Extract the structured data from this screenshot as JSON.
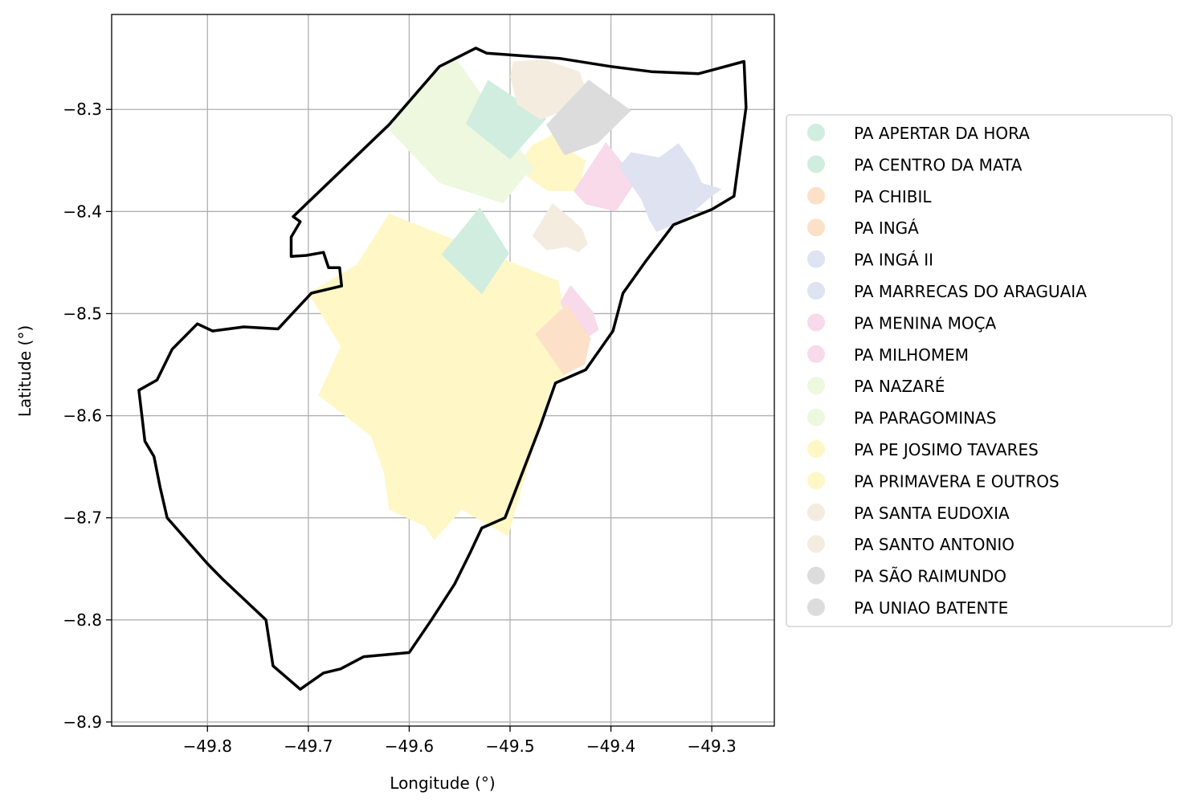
{
  "axes": {
    "xlabel": "Longitude (°)",
    "ylabel": "Latitude (°)",
    "xlim": [
      -49.895,
      -49.238
    ],
    "ylim": [
      -8.904,
      -8.207
    ],
    "xticks": [
      {
        "value": -49.8,
        "label": "−49.8"
      },
      {
        "value": -49.7,
        "label": "−49.7"
      },
      {
        "value": -49.6,
        "label": "−49.6"
      },
      {
        "value": -49.5,
        "label": "−49.5"
      },
      {
        "value": -49.4,
        "label": "−49.4"
      },
      {
        "value": -49.3,
        "label": "−49.3"
      }
    ],
    "yticks": [
      {
        "value": -8.3,
        "label": "−8.3"
      },
      {
        "value": -8.4,
        "label": "−8.4"
      },
      {
        "value": -8.5,
        "label": "−8.5"
      },
      {
        "value": -8.6,
        "label": "−8.6"
      },
      {
        "value": -8.7,
        "label": "−8.7"
      },
      {
        "value": -8.8,
        "label": "−8.8"
      },
      {
        "value": -8.9,
        "label": "−8.9"
      }
    ],
    "grid": true
  },
  "boundary": [
    [
      -49.534,
      -8.24
    ],
    [
      -49.523,
      -8.245
    ],
    [
      -49.451,
      -8.25
    ],
    [
      -49.4,
      -8.258
    ],
    [
      -49.36,
      -8.263
    ],
    [
      -49.313,
      -8.265
    ],
    [
      -49.268,
      -8.253
    ],
    [
      -49.266,
      -8.298
    ],
    [
      -49.278,
      -8.385
    ],
    [
      -49.3,
      -8.398
    ],
    [
      -49.338,
      -8.413
    ],
    [
      -49.365,
      -8.448
    ],
    [
      -49.388,
      -8.48
    ],
    [
      -49.398,
      -8.517
    ],
    [
      -49.425,
      -8.555
    ],
    [
      -49.455,
      -8.568
    ],
    [
      -49.47,
      -8.61
    ],
    [
      -49.505,
      -8.7
    ],
    [
      -49.528,
      -8.71
    ],
    [
      -49.54,
      -8.735
    ],
    [
      -49.555,
      -8.765
    ],
    [
      -49.578,
      -8.8
    ],
    [
      -49.6,
      -8.832
    ],
    [
      -49.645,
      -8.836
    ],
    [
      -49.668,
      -8.848
    ],
    [
      -49.685,
      -8.852
    ],
    [
      -49.708,
      -8.868
    ],
    [
      -49.735,
      -8.845
    ],
    [
      -49.742,
      -8.8
    ],
    [
      -49.785,
      -8.76
    ],
    [
      -49.8,
      -8.745
    ],
    [
      -49.84,
      -8.7
    ],
    [
      -49.847,
      -8.67
    ],
    [
      -49.853,
      -8.64
    ],
    [
      -49.862,
      -8.625
    ],
    [
      -49.868,
      -8.575
    ],
    [
      -49.85,
      -8.565
    ],
    [
      -49.835,
      -8.535
    ],
    [
      -49.81,
      -8.51
    ],
    [
      -49.795,
      -8.517
    ],
    [
      -49.764,
      -8.513
    ],
    [
      -49.73,
      -8.515
    ],
    [
      -49.713,
      -8.497
    ],
    [
      -49.697,
      -8.48
    ],
    [
      -49.667,
      -8.473
    ],
    [
      -49.669,
      -8.455
    ],
    [
      -49.68,
      -8.455
    ],
    [
      -49.685,
      -8.44
    ],
    [
      -49.702,
      -8.443
    ],
    [
      -49.717,
      -8.444
    ],
    [
      -49.717,
      -8.425
    ],
    [
      -49.708,
      -8.41
    ],
    [
      -49.715,
      -8.405
    ],
    [
      -49.62,
      -8.315
    ],
    [
      -49.57,
      -8.258
    ]
  ],
  "polygons": [
    {
      "color": "#fff7c6",
      "points": [
        [
          -49.62,
          -8.402
        ],
        [
          -49.652,
          -8.452
        ],
        [
          -49.7,
          -8.48
        ],
        [
          -49.668,
          -8.532
        ],
        [
          -49.69,
          -8.58
        ],
        [
          -49.638,
          -8.62
        ],
        [
          -49.625,
          -8.656
        ],
        [
          -49.62,
          -8.692
        ],
        [
          -49.585,
          -8.708
        ],
        [
          -49.575,
          -8.722
        ],
        [
          -49.548,
          -8.692
        ],
        [
          -49.502,
          -8.718
        ],
        [
          -49.47,
          -8.608
        ],
        [
          -49.458,
          -8.568
        ],
        [
          -49.428,
          -8.55
        ],
        [
          -49.442,
          -8.552
        ],
        [
          -49.47,
          -8.515
        ],
        [
          -49.458,
          -8.52
        ],
        [
          -49.448,
          -8.49
        ],
        [
          -49.452,
          -8.468
        ]
      ]
    },
    {
      "color": "#fff7c6",
      "points": [
        [
          -49.49,
          -8.35
        ],
        [
          -49.478,
          -8.335
        ],
        [
          -49.455,
          -8.323
        ],
        [
          -49.442,
          -8.34
        ],
        [
          -49.425,
          -8.35
        ],
        [
          -49.432,
          -8.38
        ],
        [
          -49.462,
          -8.38
        ],
        [
          -49.47,
          -8.375
        ],
        [
          -49.488,
          -8.362
        ]
      ]
    },
    {
      "color": "#edf8df",
      "points": [
        [
          -49.555,
          -8.248
        ],
        [
          -49.602,
          -8.29
        ],
        [
          -49.62,
          -8.32
        ],
        [
          -49.57,
          -8.372
        ],
        [
          -49.538,
          -8.382
        ],
        [
          -49.507,
          -8.392
        ],
        [
          -49.485,
          -8.365
        ],
        [
          -49.475,
          -8.36
        ]
      ]
    },
    {
      "color": "#d0ede0",
      "points": [
        [
          -49.522,
          -8.271
        ],
        [
          -49.464,
          -8.309
        ],
        [
          -49.5,
          -8.349
        ],
        [
          -49.544,
          -8.314
        ]
      ]
    },
    {
      "color": "#d0ede0",
      "points": [
        [
          -49.53,
          -8.396
        ],
        [
          -49.501,
          -8.441
        ],
        [
          -49.528,
          -8.481
        ],
        [
          -49.568,
          -8.442
        ]
      ]
    },
    {
      "color": "#f5ece0",
      "points": [
        [
          -49.497,
          -8.253
        ],
        [
          -49.466,
          -8.251
        ],
        [
          -49.431,
          -8.263
        ],
        [
          -49.422,
          -8.288
        ],
        [
          -49.438,
          -8.298
        ],
        [
          -49.47,
          -8.31
        ],
        [
          -49.493,
          -8.295
        ],
        [
          -49.5,
          -8.268
        ]
      ]
    },
    {
      "color": "#f5ece0",
      "points": [
        [
          -49.458,
          -8.392
        ],
        [
          -49.478,
          -8.424
        ],
        [
          -49.464,
          -8.438
        ],
        [
          -49.444,
          -8.435
        ],
        [
          -49.432,
          -8.44
        ],
        [
          -49.423,
          -8.432
        ],
        [
          -49.428,
          -8.418
        ],
        [
          -49.438,
          -8.408
        ]
      ]
    },
    {
      "color": "#dcdcdc",
      "points": [
        [
          -49.422,
          -8.271
        ],
        [
          -49.38,
          -8.301
        ],
        [
          -49.413,
          -8.333
        ],
        [
          -49.446,
          -8.345
        ],
        [
          -49.464,
          -8.315
        ]
      ]
    },
    {
      "color": "#f8daeb",
      "points": [
        [
          -49.405,
          -8.332
        ],
        [
          -49.393,
          -8.347
        ],
        [
          -49.375,
          -8.37
        ],
        [
          -49.395,
          -8.4
        ],
        [
          -49.425,
          -8.393
        ],
        [
          -49.437,
          -8.38
        ],
        [
          -49.423,
          -8.359
        ]
      ]
    },
    {
      "color": "#f8daeb",
      "points": [
        [
          -49.44,
          -8.472
        ],
        [
          -49.418,
          -8.498
        ],
        [
          -49.412,
          -8.516
        ],
        [
          -49.429,
          -8.527
        ],
        [
          -49.446,
          -8.502
        ],
        [
          -49.45,
          -8.488
        ]
      ]
    },
    {
      "color": "#fde0c8",
      "points": [
        [
          -49.444,
          -8.491
        ],
        [
          -49.475,
          -8.52
        ],
        [
          -49.447,
          -8.56
        ],
        [
          -49.426,
          -8.55
        ],
        [
          -49.42,
          -8.524
        ]
      ]
    },
    {
      "color": "#dfe2f0",
      "points": [
        [
          -49.392,
          -8.356
        ],
        [
          -49.38,
          -8.342
        ],
        [
          -49.352,
          -8.347
        ],
        [
          -49.333,
          -8.333
        ],
        [
          -49.318,
          -8.354
        ],
        [
          -49.31,
          -8.372
        ],
        [
          -49.29,
          -8.378
        ],
        [
          -49.3,
          -8.385
        ],
        [
          -49.33,
          -8.41
        ],
        [
          -49.355,
          -8.42
        ],
        [
          -49.362,
          -8.408
        ],
        [
          -49.37,
          -8.388
        ]
      ]
    }
  ],
  "legend": {
    "placement": "center-right",
    "items": [
      {
        "label": "PA APERTAR DA HORA",
        "color": "#d0ede0"
      },
      {
        "label": "PA CENTRO DA MATA",
        "color": "#d0ede0"
      },
      {
        "label": "PA CHIBIL",
        "color": "#fde0c8"
      },
      {
        "label": "PA INGÁ",
        "color": "#fde0c8"
      },
      {
        "label": "PA INGÁ II",
        "color": "#dfe2f0"
      },
      {
        "label": "PA MARRECAS DO ARAGUAIA",
        "color": "#dfe2f0"
      },
      {
        "label": "PA MENINA MOÇA",
        "color": "#f8daeb"
      },
      {
        "label": "PA MILHOMEM",
        "color": "#f8daeb"
      },
      {
        "label": "PA NAZARÉ",
        "color": "#edf8df"
      },
      {
        "label": "PA PARAGOMINAS",
        "color": "#edf8df"
      },
      {
        "label": "PA PE JOSIMO TAVARES",
        "color": "#fff7c6"
      },
      {
        "label": "PA PRIMAVERA E OUTROS",
        "color": "#fff7c6"
      },
      {
        "label": "PA SANTA EUDOXIA",
        "color": "#f5ece0"
      },
      {
        "label": "PA SANTO ANTONIO",
        "color": "#f5ece0"
      },
      {
        "label": "PA SÃO RAIMUNDO",
        "color": "#dcdcdc"
      },
      {
        "label": "PA UNIAO BATENTE",
        "color": "#dcdcdc"
      }
    ]
  }
}
